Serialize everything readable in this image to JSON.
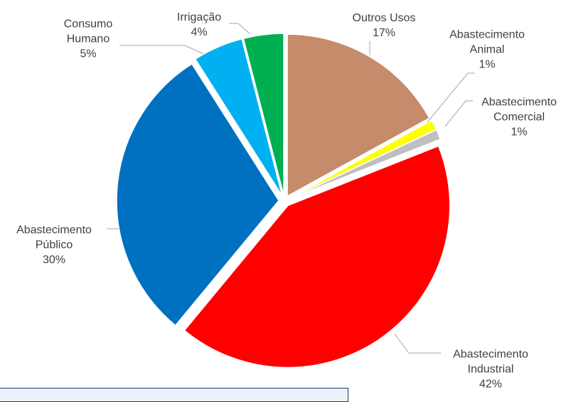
{
  "chart_data": {
    "type": "pie",
    "categories": [
      "Outros Usos",
      "Abastecimento Animal",
      "Abastecimento Comercial",
      "Abastecimento Industrial",
      "Abastecimento Público",
      "Consumo Humano",
      "Irrigação"
    ],
    "values": [
      17,
      1,
      1,
      42,
      30,
      5,
      4
    ],
    "value_labels": [
      "17%",
      "1%",
      "1%",
      "42%",
      "30%",
      "5%",
      "4%"
    ],
    "colors": [
      "#c58b6b",
      "#ffff00",
      "#bfbfbf",
      "#ff0000",
      "#0070c0",
      "#00b0f0",
      "#00b050"
    ]
  }
}
